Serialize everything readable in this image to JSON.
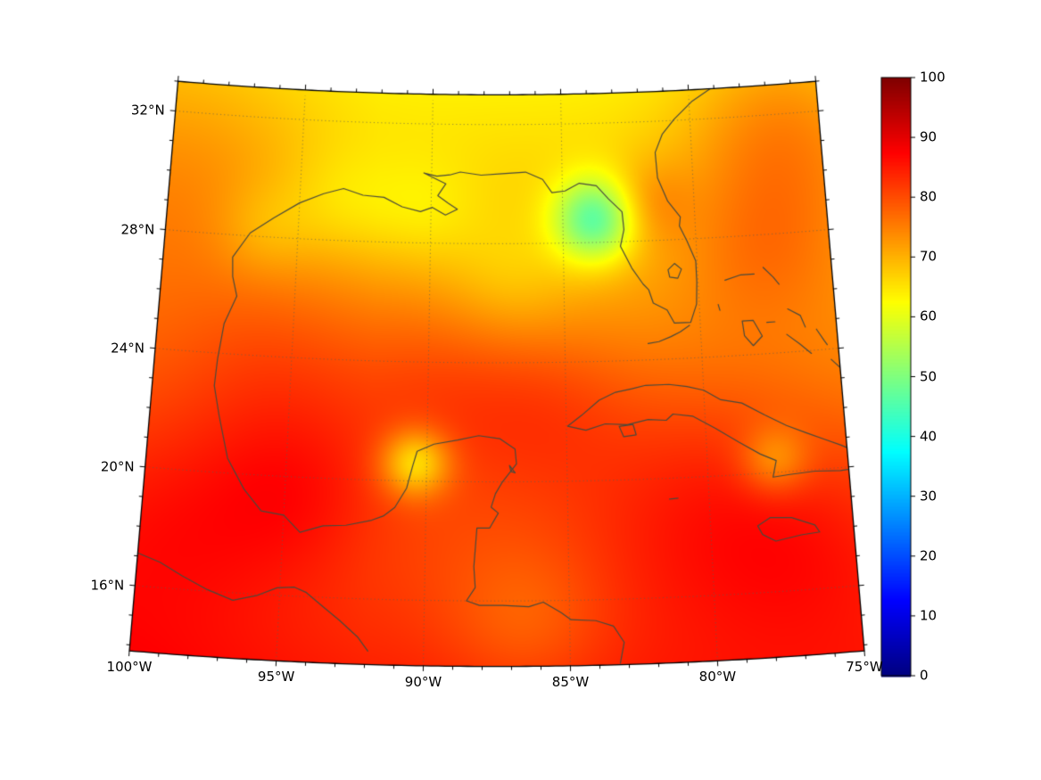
{
  "chart_data": {
    "type": "heatmap",
    "title": "",
    "colormap": "jet",
    "extent": {
      "lon_min": -100,
      "lon_max": -75,
      "lat_min": 13.8,
      "lat_max": 33.0
    },
    "axes": {
      "lat_ticks": [
        {
          "value": 32,
          "label": "32°N"
        },
        {
          "value": 28,
          "label": "28°N"
        },
        {
          "value": 24,
          "label": "24°N"
        },
        {
          "value": 20,
          "label": "20°N"
        },
        {
          "value": 16,
          "label": "16°N"
        }
      ],
      "lon_ticks": [
        {
          "value": -100,
          "label": "100°W"
        },
        {
          "value": -95,
          "label": "95°W"
        },
        {
          "value": -90,
          "label": "90°W"
        },
        {
          "value": -85,
          "label": "85°W"
        },
        {
          "value": -80,
          "label": "80°W"
        },
        {
          "value": -75,
          "label": "75°W"
        }
      ],
      "minor_tick_interval_deg": 1,
      "gridline_lats": [
        16,
        20,
        24,
        28,
        32
      ],
      "gridline_lons": [
        -100,
        -95,
        -90,
        -85,
        -80,
        -75
      ],
      "grid_style": "dotted"
    },
    "colorbar": {
      "min": 0,
      "max": 100,
      "orientation": "vertical",
      "ticks": [
        {
          "value": 0,
          "label": "0"
        },
        {
          "value": 10,
          "label": "10"
        },
        {
          "value": 20,
          "label": "20"
        },
        {
          "value": 30,
          "label": "30"
        },
        {
          "value": 40,
          "label": "40"
        },
        {
          "value": 50,
          "label": "50"
        },
        {
          "value": 60,
          "label": "60"
        },
        {
          "value": 70,
          "label": "70"
        },
        {
          "value": 80,
          "label": "80"
        },
        {
          "value": 90,
          "label": "90"
        },
        {
          "value": 100,
          "label": "100"
        }
      ]
    },
    "field": {
      "displayed_value_range": [
        46,
        88
      ],
      "base": {
        "value_at_north_edge": 64,
        "gradient_per_deg_south": 1.05,
        "west_extra": 3,
        "west_ramp_start_lon": -92,
        "west_ramp_end_lon": -100
      },
      "anomalies": [
        {
          "name": "florida-big-bend-low",
          "lon": -83.8,
          "lat": 28.75,
          "amp": -22,
          "sigma": 1.0
        },
        {
          "name": "nw-yucatan-low",
          "lon": -90.4,
          "lat": 20.6,
          "amp": -16,
          "sigma": 0.8
        },
        {
          "name": "louisiana-shelf-low-west",
          "lon": -93.5,
          "lat": 29.2,
          "amp": -4,
          "sigma": 1.4
        },
        {
          "name": "louisiana-shelf-low-east",
          "lon": -90.3,
          "lat": 29.0,
          "amp": -4,
          "sigma": 1.4
        },
        {
          "name": "texas-coast-low",
          "lon": -96.3,
          "lat": 28.2,
          "amp": -4,
          "sigma": 1.2
        },
        {
          "name": "west-gulf-high",
          "lon": -95.5,
          "lat": 23.5,
          "amp": 5,
          "sigma": 2.5
        },
        {
          "name": "central-gulf-high",
          "lon": -89.5,
          "lat": 23.0,
          "amp": 6,
          "sigma": 2.5
        },
        {
          "name": "campeche-bay-high",
          "lon": -94.5,
          "lat": 19.5,
          "amp": 5,
          "sigma": 2.0
        },
        {
          "name": "yucatan-channel-high",
          "lon": -85.5,
          "lat": 22.5,
          "amp": 4,
          "sigma": 2.0
        },
        {
          "name": "nw-caribbean-high",
          "lon": -80.5,
          "lat": 19.5,
          "amp": 6,
          "sigma": 3.0
        },
        {
          "name": "se-cuba-coast-low",
          "lon": -77.6,
          "lat": 20.4,
          "amp": -9,
          "sigma": 0.8
        },
        {
          "name": "atlantic-northeast-high",
          "lon": -76.5,
          "lat": 31.5,
          "amp": 9,
          "sigma": 2.5
        },
        {
          "name": "atlantic-florida-high",
          "lon": -77.5,
          "lat": 27.5,
          "amp": 5,
          "sigma": 2.0
        },
        {
          "name": "northwest-land-high",
          "lon": -99.0,
          "lat": 30.0,
          "amp": 4,
          "sigma": 3.0
        },
        {
          "name": "mexico-interior-high",
          "lon": -98.5,
          "lat": 18.5,
          "amp": 4,
          "sigma": 2.5
        },
        {
          "name": "southeast-caribbean-high",
          "lon": -76.5,
          "lat": 17.5,
          "amp": 4,
          "sigma": 2.5
        },
        {
          "name": "honduras-coast-low",
          "lon": -86.5,
          "lat": 15.3,
          "amp": -5,
          "sigma": 1.8
        },
        {
          "name": "northeast-gulf-yellow-tongue",
          "lon": -87.0,
          "lat": 26.8,
          "amp": -4,
          "sigma": 1.6
        },
        {
          "name": "north-florida-high",
          "lon": -81.7,
          "lat": 29.3,
          "amp": 5,
          "sigma": 1.0
        }
      ]
    },
    "coastlines": {
      "us_gulf_atlantic": [
        [
          -97.15,
          25.95
        ],
        [
          -97.35,
          26.6
        ],
        [
          -97.4,
          27.25
        ],
        [
          -96.8,
          28.1
        ],
        [
          -95.95,
          28.65
        ],
        [
          -95.0,
          29.2
        ],
        [
          -94.1,
          29.55
        ],
        [
          -93.35,
          29.75
        ],
        [
          -92.6,
          29.55
        ],
        [
          -91.8,
          29.5
        ],
        [
          -91.1,
          29.2
        ],
        [
          -90.4,
          29.05
        ],
        [
          -89.95,
          29.2
        ],
        [
          -89.45,
          28.95
        ],
        [
          -89.0,
          29.15
        ],
        [
          -89.35,
          29.35
        ],
        [
          -89.75,
          29.6
        ],
        [
          -89.45,
          30.0
        ],
        [
          -90.3,
          30.35
        ],
        [
          -89.8,
          30.25
        ],
        [
          -89.3,
          30.3
        ],
        [
          -88.9,
          30.4
        ],
        [
          -88.1,
          30.3
        ],
        [
          -87.3,
          30.35
        ],
        [
          -86.4,
          30.4
        ],
        [
          -85.75,
          30.15
        ],
        [
          -85.4,
          29.7
        ],
        [
          -84.9,
          29.75
        ],
        [
          -84.35,
          30.0
        ],
        [
          -83.7,
          29.9
        ],
        [
          -83.25,
          29.45
        ],
        [
          -82.75,
          29.0
        ],
        [
          -82.7,
          28.4
        ],
        [
          -82.85,
          27.85
        ],
        [
          -82.45,
          27.1
        ],
        [
          -82.05,
          26.55
        ],
        [
          -81.85,
          26.35
        ],
        [
          -81.7,
          25.9
        ],
        [
          -81.2,
          25.65
        ],
        [
          -80.95,
          25.2
        ],
        [
          -80.35,
          25.2
        ],
        [
          -80.1,
          25.8
        ],
        [
          -80.05,
          26.55
        ],
        [
          -80.05,
          27.25
        ],
        [
          -80.35,
          27.95
        ],
        [
          -80.6,
          28.45
        ],
        [
          -80.55,
          28.75
        ],
        [
          -81.0,
          29.3
        ],
        [
          -81.35,
          30.1
        ],
        [
          -81.4,
          30.95
        ],
        [
          -81.1,
          31.55
        ],
        [
          -80.6,
          32.05
        ],
        [
          -79.9,
          32.6
        ],
        [
          -79.05,
          33.05
        ]
      ],
      "mexico_belize_honduras": [
        [
          -97.15,
          25.95
        ],
        [
          -97.55,
          25.0
        ],
        [
          -97.7,
          23.8
        ],
        [
          -97.75,
          22.9
        ],
        [
          -97.5,
          21.9
        ],
        [
          -97.3,
          21.2
        ],
        [
          -97.1,
          20.5
        ],
        [
          -96.45,
          19.5
        ],
        [
          -95.8,
          18.8
        ],
        [
          -95.0,
          18.7
        ],
        [
          -94.4,
          18.15
        ],
        [
          -93.6,
          18.4
        ],
        [
          -92.8,
          18.45
        ],
        [
          -91.9,
          18.65
        ],
        [
          -91.5,
          18.8
        ],
        [
          -91.1,
          19.1
        ],
        [
          -90.7,
          19.75
        ],
        [
          -90.5,
          20.5
        ],
        [
          -90.35,
          21.0
        ],
        [
          -89.75,
          21.25
        ],
        [
          -88.9,
          21.4
        ],
        [
          -88.15,
          21.55
        ],
        [
          -87.4,
          21.45
        ],
        [
          -86.85,
          21.1
        ],
        [
          -86.8,
          20.6
        ],
        [
          -87.3,
          20.0
        ],
        [
          -87.55,
          19.6
        ],
        [
          -87.7,
          19.15
        ],
        [
          -87.45,
          18.95
        ],
        [
          -87.75,
          18.45
        ],
        [
          -88.2,
          18.45
        ],
        [
          -88.25,
          17.8
        ],
        [
          -88.3,
          17.15
        ],
        [
          -88.25,
          16.45
        ],
        [
          -88.55,
          16.0
        ],
        [
          -88.1,
          15.85
        ],
        [
          -87.3,
          15.85
        ],
        [
          -86.4,
          15.8
        ],
        [
          -85.9,
          15.95
        ],
        [
          -85.3,
          15.6
        ],
        [
          -84.95,
          15.35
        ],
        [
          -84.1,
          15.3
        ],
        [
          -83.5,
          15.1
        ],
        [
          -83.15,
          14.55
        ],
        [
          -83.3,
          13.85
        ]
      ],
      "mexico_pacific": [
        [
          -100.0,
          17.1
        ],
        [
          -99.2,
          16.85
        ],
        [
          -98.4,
          16.45
        ],
        [
          -97.5,
          16.05
        ],
        [
          -96.6,
          15.75
        ],
        [
          -95.8,
          15.95
        ],
        [
          -95.1,
          16.25
        ],
        [
          -94.5,
          16.3
        ],
        [
          -94.1,
          16.15
        ],
        [
          -93.5,
          15.7
        ],
        [
          -92.9,
          15.25
        ],
        [
          -92.25,
          14.7
        ],
        [
          -91.9,
          14.25
        ]
      ],
      "cuba": [
        [
          -84.95,
          21.85
        ],
        [
          -84.45,
          22.2
        ],
        [
          -83.8,
          22.7
        ],
        [
          -83.2,
          22.95
        ],
        [
          -82.6,
          23.05
        ],
        [
          -82.1,
          23.15
        ],
        [
          -81.25,
          23.15
        ],
        [
          -80.6,
          23.05
        ],
        [
          -80.0,
          22.9
        ],
        [
          -79.4,
          22.55
        ],
        [
          -78.65,
          22.4
        ],
        [
          -77.85,
          21.95
        ],
        [
          -77.1,
          21.55
        ],
        [
          -76.4,
          21.25
        ],
        [
          -75.8,
          21.0
        ],
        [
          -75.2,
          20.75
        ],
        [
          -74.5,
          20.4
        ],
        [
          -74.15,
          20.2
        ],
        [
          -74.45,
          19.95
        ],
        [
          -75.3,
          19.9
        ],
        [
          -76.2,
          19.95
        ],
        [
          -77.1,
          19.9
        ],
        [
          -77.7,
          19.85
        ],
        [
          -77.55,
          20.4
        ],
        [
          -78.1,
          20.65
        ],
        [
          -78.85,
          21.1
        ],
        [
          -79.65,
          21.6
        ],
        [
          -80.45,
          22.05
        ],
        [
          -81.15,
          22.15
        ],
        [
          -81.4,
          21.95
        ],
        [
          -82.05,
          22.0
        ],
        [
          -82.8,
          21.85
        ],
        [
          -83.6,
          21.9
        ],
        [
          -84.3,
          21.7
        ],
        [
          -84.95,
          21.85
        ]
      ],
      "isla_juventud": [
        [
          -83.1,
          21.8
        ],
        [
          -82.6,
          21.85
        ],
        [
          -82.5,
          21.5
        ],
        [
          -82.95,
          21.45
        ],
        [
          -83.1,
          21.8
        ]
      ],
      "jamaica": [
        [
          -78.35,
          18.25
        ],
        [
          -77.9,
          18.5
        ],
        [
          -77.15,
          18.45
        ],
        [
          -76.35,
          18.15
        ],
        [
          -76.2,
          17.9
        ],
        [
          -76.85,
          17.85
        ],
        [
          -77.75,
          17.7
        ],
        [
          -78.2,
          17.95
        ],
        [
          -78.35,
          18.25
        ]
      ],
      "florida_keys": [
        [
          -80.4,
          25.1
        ],
        [
          -80.75,
          24.9
        ],
        [
          -81.1,
          24.75
        ],
        [
          -81.55,
          24.6
        ],
        [
          -81.95,
          24.55
        ]
      ],
      "lake_okeechobee": [
        [
          -81.1,
          27.0
        ],
        [
          -80.85,
          27.2
        ],
        [
          -80.6,
          27.0
        ],
        [
          -80.75,
          26.7
        ],
        [
          -81.05,
          26.75
        ],
        [
          -81.1,
          27.0
        ]
      ],
      "grand_bahama": [
        [
          -79.0,
          26.55
        ],
        [
          -78.4,
          26.7
        ],
        [
          -77.9,
          26.7
        ]
      ],
      "abaco": [
        [
          -77.55,
          26.9
        ],
        [
          -77.2,
          26.55
        ],
        [
          -77.0,
          26.3
        ]
      ],
      "andros": [
        [
          -78.45,
          25.15
        ],
        [
          -78.05,
          25.15
        ],
        [
          -77.75,
          24.6
        ],
        [
          -78.1,
          24.3
        ],
        [
          -78.4,
          24.65
        ],
        [
          -78.45,
          25.15
        ]
      ],
      "new_providence": [
        [
          -77.55,
          25.05
        ],
        [
          -77.25,
          25.05
        ]
      ],
      "eleuthera": [
        [
          -76.75,
          25.45
        ],
        [
          -76.3,
          25.2
        ],
        [
          -76.15,
          24.8
        ]
      ],
      "exuma_chain": [
        [
          -76.85,
          24.6
        ],
        [
          -76.4,
          24.25
        ],
        [
          -76.0,
          23.9
        ]
      ],
      "cat_island": [
        [
          -75.75,
          24.7
        ],
        [
          -75.5,
          24.3
        ],
        [
          -75.4,
          24.15
        ]
      ],
      "long_island_bahamas": [
        [
          -75.3,
          23.65
        ],
        [
          -75.0,
          23.35
        ],
        [
          -74.85,
          23.0
        ]
      ],
      "crooked_acklins": [
        [
          -74.95,
          22.75
        ],
        [
          -74.55,
          22.6
        ],
        [
          -74.3,
          22.35
        ]
      ],
      "bimini": [
        [
          -79.3,
          25.75
        ],
        [
          -79.25,
          25.55
        ]
      ],
      "cozumel": [
        [
          -87.05,
          20.55
        ],
        [
          -86.85,
          20.3
        ],
        [
          -87.0,
          20.35
        ],
        [
          -87.05,
          20.55
        ]
      ],
      "grand_cayman": [
        [
          -81.4,
          19.3
        ],
        [
          -81.1,
          19.32
        ]
      ]
    },
    "colors": {
      "coastline": "#4a4a3c",
      "grid": "#5f5f52",
      "boundary": "#000000",
      "background": "#ffffff",
      "label": "#000000"
    }
  }
}
